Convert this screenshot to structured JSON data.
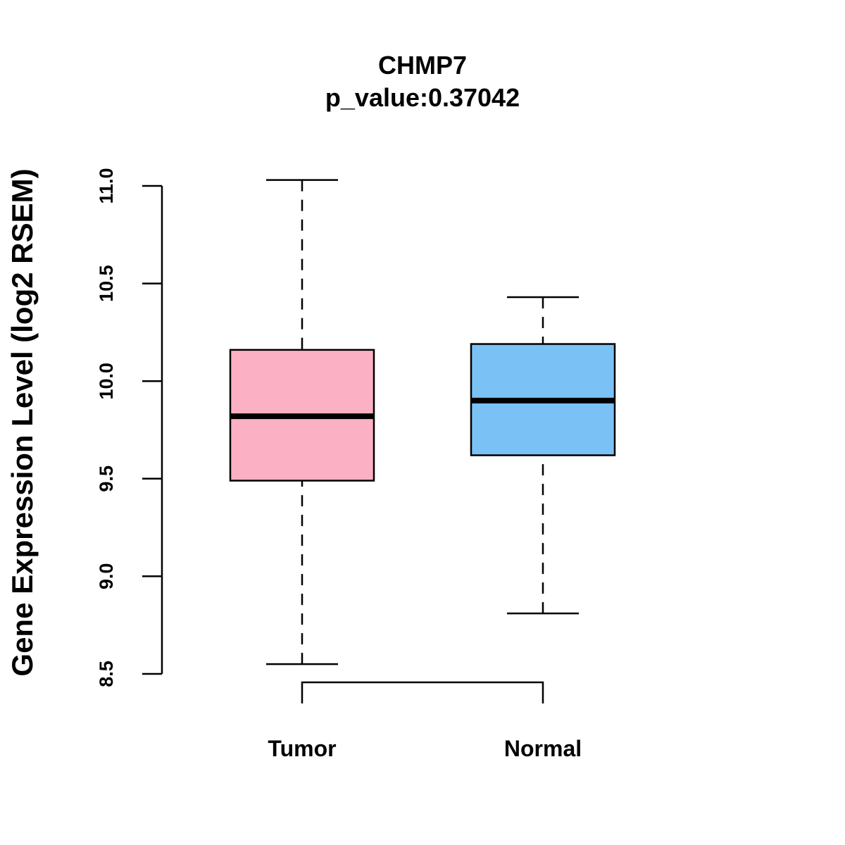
{
  "chart_data": {
    "type": "boxplot",
    "title": "CHMP7",
    "subtitle": "p_value:0.37042",
    "ylabel": "Gene Expression Level (log2 RSEM)",
    "xlabel": "",
    "ylim": [
      8.5,
      11.0
    ],
    "yticks": [
      "8.5",
      "9.0",
      "9.5",
      "10.0",
      "10.5",
      "11.0"
    ],
    "categories": [
      "Tumor",
      "Normal"
    ],
    "series": [
      {
        "name": "Tumor",
        "color": "#FBB1C3",
        "whisker_low": 8.55,
        "q1": 9.49,
        "median": 9.82,
        "q3": 10.16,
        "whisker_high": 11.03
      },
      {
        "name": "Normal",
        "color": "#7AC1F6",
        "whisker_low": 8.81,
        "q1": 9.62,
        "median": 9.9,
        "q3": 10.19,
        "whisker_high": 10.43
      }
    ],
    "comparison_bracket": [
      "Tumor",
      "Normal"
    ]
  }
}
